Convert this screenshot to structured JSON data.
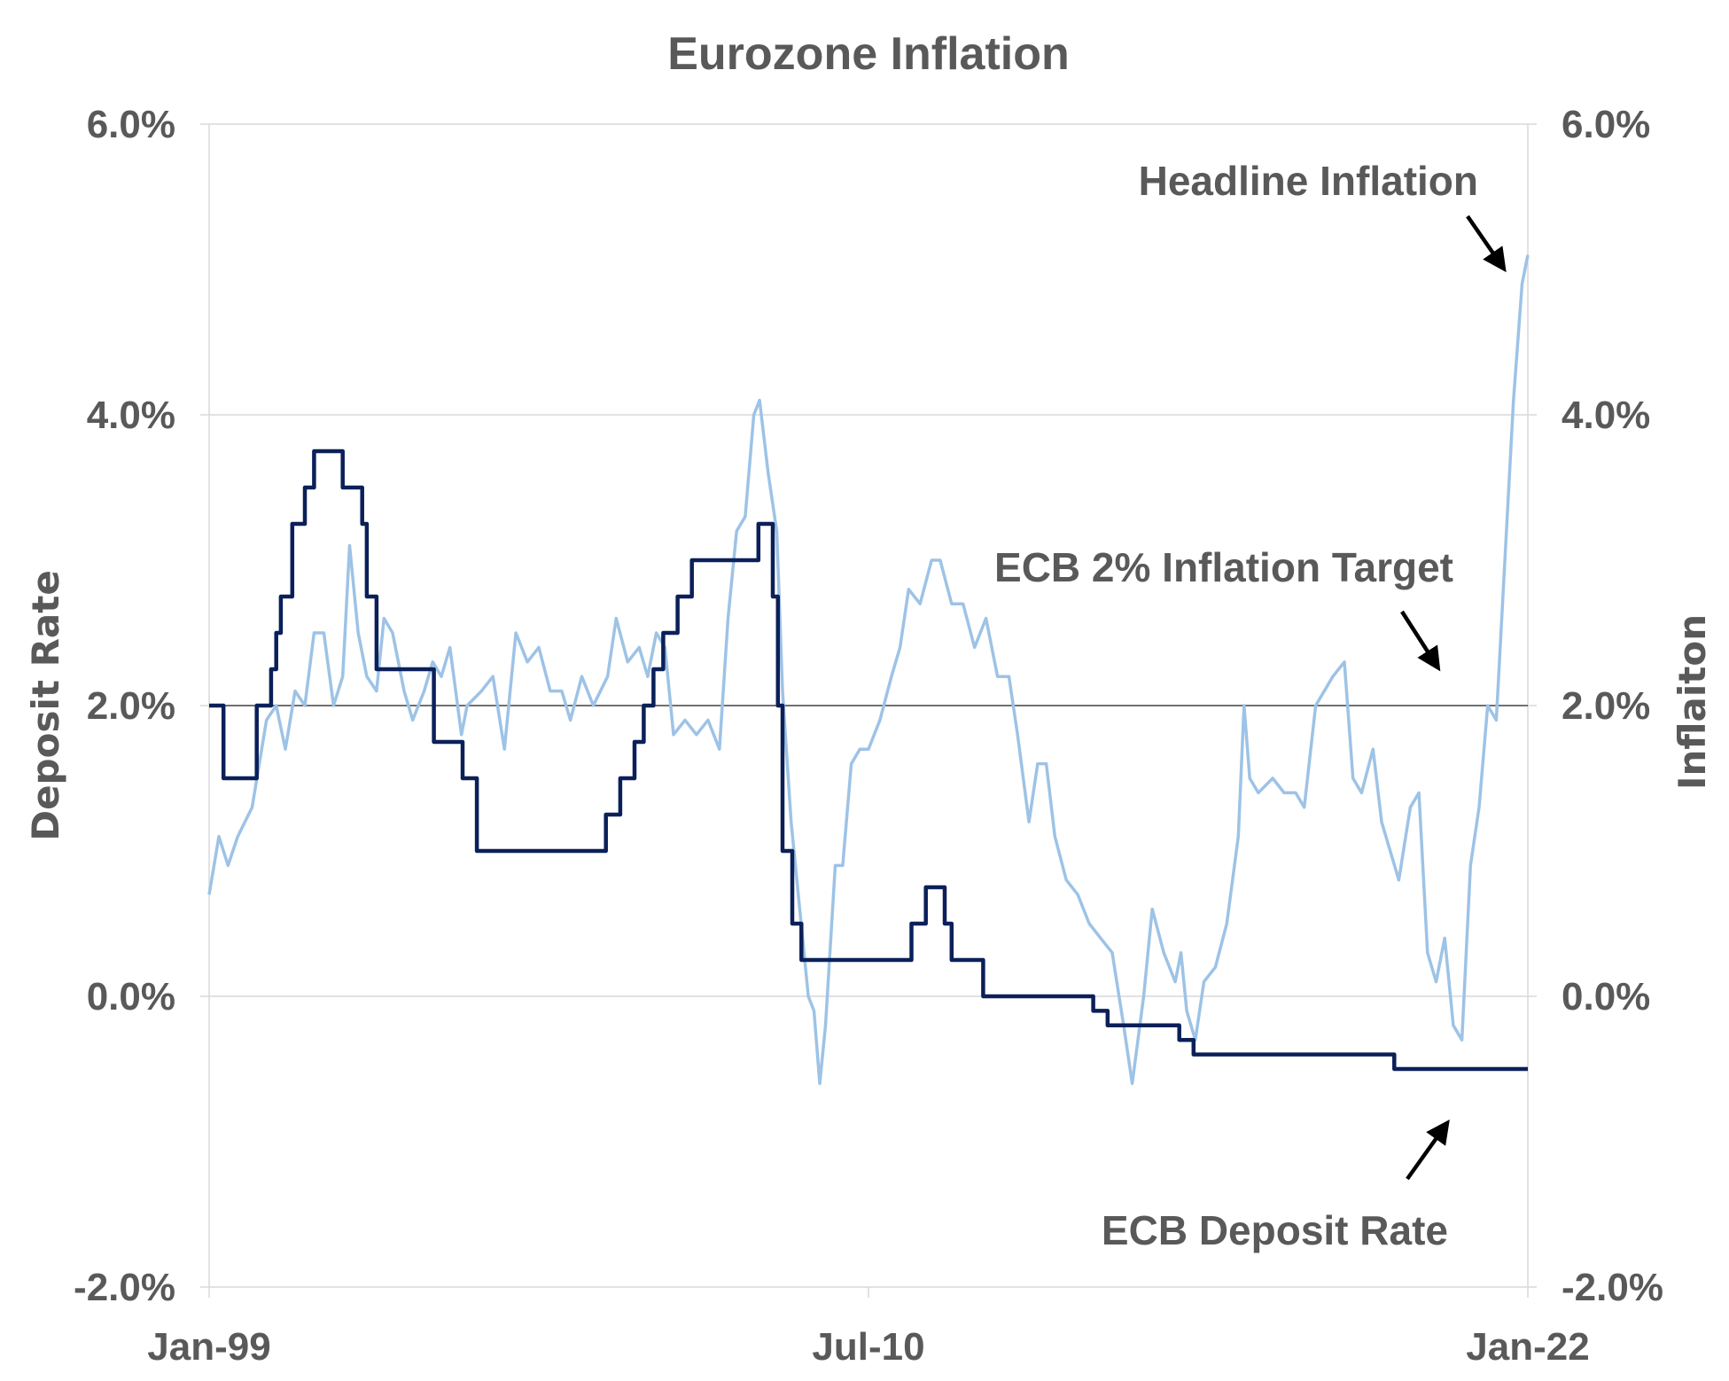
{
  "chart_data": {
    "type": "line",
    "title": "Eurozone Inflation",
    "ylabel_left": "Deposit  Rate",
    "ylabel_right": "Inflaiton",
    "xlabel": "",
    "ylim": [
      -2,
      6
    ],
    "y_ticks": [
      {
        "value": -2,
        "label": "-2.0%"
      },
      {
        "value": 0,
        "label": "0.0%"
      },
      {
        "value": 2,
        "label": "2.0%"
      },
      {
        "value": 4,
        "label": "4.0%"
      },
      {
        "value": 6,
        "label": "6.0%"
      }
    ],
    "x_range": [
      1999.0,
      2022.0
    ],
    "x_ticks": [
      {
        "value": 1999.0,
        "label": "Jan-99"
      },
      {
        "value": 2010.5,
        "label": "Jul-10"
      },
      {
        "value": 2022.0,
        "label": "Jan-22"
      }
    ],
    "grid": true,
    "target": {
      "value": 2,
      "name": "ECB 2% Inflation Target"
    },
    "annotations": [
      {
        "text": "Headline Inflation",
        "points_to": "Headline Inflation series end"
      },
      {
        "text": "ECB 2% Inflation Target",
        "points_to": "2% target line"
      },
      {
        "text": "ECB Deposit Rate",
        "points_to": "ECB Deposit Rate series end"
      }
    ],
    "colors": {
      "inflation": "#9dc3e6",
      "deposit": "#0b2059",
      "target": "#404040",
      "text": "#595959"
    },
    "series": [
      {
        "name": "Headline Inflation",
        "color": "#9dc3e6",
        "points": [
          [
            1999.0,
            0.7
          ],
          [
            1999.17,
            1.1
          ],
          [
            1999.33,
            0.9
          ],
          [
            1999.5,
            1.1
          ],
          [
            1999.75,
            1.3
          ],
          [
            2000.0,
            1.9
          ],
          [
            2000.17,
            2.0
          ],
          [
            2000.33,
            1.7
          ],
          [
            2000.5,
            2.1
          ],
          [
            2000.67,
            2.0
          ],
          [
            2000.83,
            2.5
          ],
          [
            2001.0,
            2.5
          ],
          [
            2001.17,
            2.0
          ],
          [
            2001.33,
            2.2
          ],
          [
            2001.45,
            3.1
          ],
          [
            2001.6,
            2.5
          ],
          [
            2001.75,
            2.2
          ],
          [
            2001.92,
            2.1
          ],
          [
            2002.05,
            2.6
          ],
          [
            2002.2,
            2.5
          ],
          [
            2002.4,
            2.1
          ],
          [
            2002.55,
            1.9
          ],
          [
            2002.75,
            2.1
          ],
          [
            2002.9,
            2.3
          ],
          [
            2003.05,
            2.2
          ],
          [
            2003.2,
            2.4
          ],
          [
            2003.4,
            1.8
          ],
          [
            2003.5,
            2.0
          ],
          [
            2003.75,
            2.1
          ],
          [
            2003.95,
            2.2
          ],
          [
            2004.15,
            1.7
          ],
          [
            2004.35,
            2.5
          ],
          [
            2004.55,
            2.3
          ],
          [
            2004.75,
            2.4
          ],
          [
            2004.95,
            2.1
          ],
          [
            2005.15,
            2.1
          ],
          [
            2005.3,
            1.9
          ],
          [
            2005.5,
            2.2
          ],
          [
            2005.7,
            2.0
          ],
          [
            2005.95,
            2.2
          ],
          [
            2006.1,
            2.6
          ],
          [
            2006.3,
            2.3
          ],
          [
            2006.5,
            2.4
          ],
          [
            2006.65,
            2.2
          ],
          [
            2006.8,
            2.5
          ],
          [
            2006.95,
            2.4
          ],
          [
            2007.1,
            1.8
          ],
          [
            2007.3,
            1.9
          ],
          [
            2007.5,
            1.8
          ],
          [
            2007.7,
            1.9
          ],
          [
            2007.9,
            1.7
          ],
          [
            2008.05,
            2.6
          ],
          [
            2008.2,
            3.2
          ],
          [
            2008.35,
            3.3
          ],
          [
            2008.5,
            4.0
          ],
          [
            2008.6,
            4.1
          ],
          [
            2008.75,
            3.6
          ],
          [
            2008.9,
            3.2
          ],
          [
            2009.0,
            2.1
          ],
          [
            2009.15,
            1.2
          ],
          [
            2009.3,
            0.6
          ],
          [
            2009.45,
            0.0
          ],
          [
            2009.55,
            -0.1
          ],
          [
            2009.65,
            -0.6
          ],
          [
            2009.75,
            -0.2
          ],
          [
            2009.92,
            0.9
          ],
          [
            2010.05,
            0.9
          ],
          [
            2010.2,
            1.6
          ],
          [
            2010.35,
            1.7
          ],
          [
            2010.5,
            1.7
          ],
          [
            2010.7,
            1.9
          ],
          [
            2010.9,
            2.2
          ],
          [
            2011.05,
            2.4
          ],
          [
            2011.2,
            2.8
          ],
          [
            2011.4,
            2.7
          ],
          [
            2011.6,
            3.0
          ],
          [
            2011.75,
            3.0
          ],
          [
            2011.95,
            2.7
          ],
          [
            2012.15,
            2.7
          ],
          [
            2012.35,
            2.4
          ],
          [
            2012.55,
            2.6
          ],
          [
            2012.75,
            2.2
          ],
          [
            2012.95,
            2.2
          ],
          [
            2013.1,
            1.8
          ],
          [
            2013.3,
            1.2
          ],
          [
            2013.45,
            1.6
          ],
          [
            2013.6,
            1.6
          ],
          [
            2013.75,
            1.1
          ],
          [
            2013.95,
            0.8
          ],
          [
            2014.15,
            0.7
          ],
          [
            2014.35,
            0.5
          ],
          [
            2014.55,
            0.4
          ],
          [
            2014.75,
            0.3
          ],
          [
            2014.95,
            -0.2
          ],
          [
            2015.1,
            -0.6
          ],
          [
            2015.3,
            0.0
          ],
          [
            2015.45,
            0.6
          ],
          [
            2015.65,
            0.3
          ],
          [
            2015.85,
            0.1
          ],
          [
            2015.95,
            0.3
          ],
          [
            2016.05,
            -0.1
          ],
          [
            2016.2,
            -0.3
          ],
          [
            2016.35,
            0.1
          ],
          [
            2016.55,
            0.2
          ],
          [
            2016.75,
            0.5
          ],
          [
            2016.95,
            1.1
          ],
          [
            2017.05,
            2.0
          ],
          [
            2017.15,
            1.5
          ],
          [
            2017.3,
            1.4
          ],
          [
            2017.55,
            1.5
          ],
          [
            2017.75,
            1.4
          ],
          [
            2017.95,
            1.4
          ],
          [
            2018.1,
            1.3
          ],
          [
            2018.3,
            2.0
          ],
          [
            2018.45,
            2.1
          ],
          [
            2018.6,
            2.2
          ],
          [
            2018.8,
            2.3
          ],
          [
            2018.95,
            1.5
          ],
          [
            2019.1,
            1.4
          ],
          [
            2019.3,
            1.7
          ],
          [
            2019.45,
            1.2
          ],
          [
            2019.6,
            1.0
          ],
          [
            2019.75,
            0.8
          ],
          [
            2019.95,
            1.3
          ],
          [
            2020.1,
            1.4
          ],
          [
            2020.25,
            0.3
          ],
          [
            2020.4,
            0.1
          ],
          [
            2020.55,
            0.4
          ],
          [
            2020.7,
            -0.2
          ],
          [
            2020.85,
            -0.3
          ],
          [
            2021.0,
            0.9
          ],
          [
            2021.15,
            1.3
          ],
          [
            2021.3,
            2.0
          ],
          [
            2021.45,
            1.9
          ],
          [
            2021.6,
            3.0
          ],
          [
            2021.75,
            4.1
          ],
          [
            2021.9,
            4.9
          ],
          [
            2022.0,
            5.1
          ]
        ]
      },
      {
        "name": "ECB Deposit Rate",
        "color": "#0b2059",
        "points": [
          [
            1999.0,
            2.0
          ],
          [
            1999.25,
            2.0
          ],
          [
            1999.25,
            1.5
          ],
          [
            1999.83,
            1.5
          ],
          [
            1999.83,
            2.0
          ],
          [
            2000.08,
            2.0
          ],
          [
            2000.08,
            2.25
          ],
          [
            2000.17,
            2.25
          ],
          [
            2000.17,
            2.5
          ],
          [
            2000.25,
            2.5
          ],
          [
            2000.25,
            2.75
          ],
          [
            2000.45,
            2.75
          ],
          [
            2000.45,
            3.25
          ],
          [
            2000.67,
            3.25
          ],
          [
            2000.67,
            3.5
          ],
          [
            2000.83,
            3.5
          ],
          [
            2000.83,
            3.75
          ],
          [
            2001.33,
            3.75
          ],
          [
            2001.33,
            3.5
          ],
          [
            2001.67,
            3.5
          ],
          [
            2001.67,
            3.25
          ],
          [
            2001.75,
            3.25
          ],
          [
            2001.75,
            2.75
          ],
          [
            2001.92,
            2.75
          ],
          [
            2001.92,
            2.25
          ],
          [
            2002.92,
            2.25
          ],
          [
            2002.92,
            1.75
          ],
          [
            2003.42,
            1.75
          ],
          [
            2003.42,
            1.5
          ],
          [
            2003.67,
            1.5
          ],
          [
            2003.67,
            1.0
          ],
          [
            2005.92,
            1.0
          ],
          [
            2005.92,
            1.25
          ],
          [
            2006.17,
            1.25
          ],
          [
            2006.17,
            1.5
          ],
          [
            2006.42,
            1.5
          ],
          [
            2006.42,
            1.75
          ],
          [
            2006.58,
            1.75
          ],
          [
            2006.58,
            2.0
          ],
          [
            2006.75,
            2.0
          ],
          [
            2006.75,
            2.25
          ],
          [
            2006.92,
            2.25
          ],
          [
            2006.92,
            2.5
          ],
          [
            2007.17,
            2.5
          ],
          [
            2007.17,
            2.75
          ],
          [
            2007.42,
            2.75
          ],
          [
            2007.42,
            3.0
          ],
          [
            2008.58,
            3.0
          ],
          [
            2008.58,
            3.25
          ],
          [
            2008.83,
            3.25
          ],
          [
            2008.83,
            2.75
          ],
          [
            2008.92,
            2.75
          ],
          [
            2008.92,
            2.0
          ],
          [
            2009.0,
            2.0
          ],
          [
            2009.0,
            1.0
          ],
          [
            2009.17,
            1.0
          ],
          [
            2009.17,
            0.5
          ],
          [
            2009.33,
            0.5
          ],
          [
            2009.33,
            0.25
          ],
          [
            2011.25,
            0.25
          ],
          [
            2011.25,
            0.5
          ],
          [
            2011.5,
            0.5
          ],
          [
            2011.5,
            0.75
          ],
          [
            2011.83,
            0.75
          ],
          [
            2011.83,
            0.5
          ],
          [
            2011.95,
            0.5
          ],
          [
            2011.95,
            0.25
          ],
          [
            2012.5,
            0.25
          ],
          [
            2012.5,
            0.0
          ],
          [
            2014.42,
            0.0
          ],
          [
            2014.42,
            -0.1
          ],
          [
            2014.67,
            -0.1
          ],
          [
            2014.67,
            -0.2
          ],
          [
            2015.92,
            -0.2
          ],
          [
            2015.92,
            -0.3
          ],
          [
            2016.17,
            -0.3
          ],
          [
            2016.17,
            -0.4
          ],
          [
            2019.67,
            -0.4
          ],
          [
            2019.67,
            -0.5
          ],
          [
            2022.0,
            -0.5
          ]
        ]
      }
    ]
  }
}
